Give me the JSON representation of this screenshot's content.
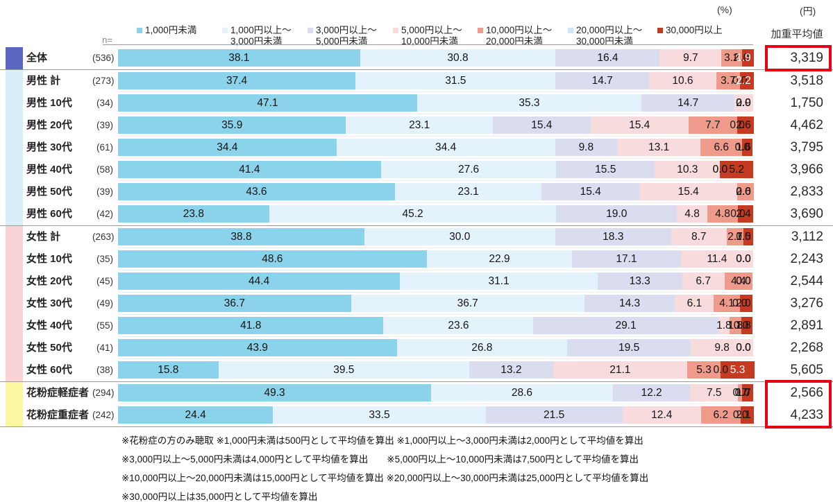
{
  "header": {
    "percent_unit": "(%)",
    "yen_unit": "(円)",
    "avg_col": "加重平均値",
    "n_label": "n="
  },
  "colors": {
    "highlight_box": "#e60012",
    "segment_colors": [
      "#8BD2EB",
      "#E4F3FB",
      "#D9DDEF",
      "#F8DBDD",
      "#EE9B8B",
      "#C9E8F6",
      "#C43B22"
    ],
    "group_stripes": [
      "#5A66C1",
      "#D8EFFA",
      "#F8D2D4",
      "#FAF7A0"
    ]
  },
  "legend": [
    {
      "lines": [
        "1,000円未満"
      ]
    },
    {
      "lines": [
        "1,000円以上～",
        "3,000円未満"
      ]
    },
    {
      "lines": [
        "3,000円以上～",
        "5,000円未満"
      ]
    },
    {
      "lines": [
        "5,000円以上～",
        "10,000円未満"
      ]
    },
    {
      "lines": [
        "10,000円以上～",
        "20,000円未満"
      ]
    },
    {
      "lines": [
        "20,000円以上～",
        "30,000円未満"
      ]
    },
    {
      "lines": [
        "30,000円以上"
      ]
    }
  ],
  "chart_data": {
    "type": "bar",
    "subtype": "100%-stacked-horizontal",
    "value_unit": "%",
    "avg_unit": "円",
    "segment_labels": [
      "1,000円未満",
      "1,000円以上～3,000円未満",
      "3,000円以上～5,000円未満",
      "5,000円以上～10,000円未満",
      "10,000円以上～20,000円未満",
      "20,000円以上～30,000円未満",
      "30,000円以上"
    ],
    "xlim": [
      0,
      100
    ],
    "groups": [
      {
        "stripe_index": 0,
        "rows": [
          {
            "label": "全体",
            "n": "(536)",
            "values": [
              38.1,
              30.8,
              16.4,
              9.7,
              3.2,
              0.0,
              1.9
            ],
            "avg": "3,319",
            "white_last": true,
            "boxed": true
          }
        ]
      },
      {
        "stripe_index": 1,
        "rows": [
          {
            "label": "男性 計",
            "n": "(273)",
            "values": [
              37.4,
              31.5,
              14.7,
              10.6,
              3.7,
              0.0,
              2.2
            ],
            "avg": "3,518",
            "white_last": true
          },
          {
            "label": "男性 10代",
            "n": "(34)",
            "values": [
              47.1,
              35.3,
              14.7,
              2.9,
              0.0,
              0.0,
              0.0
            ],
            "avg": "1,750"
          },
          {
            "label": "男性 20代",
            "n": "(39)",
            "values": [
              35.9,
              23.1,
              15.4,
              15.4,
              7.7,
              0.0,
              2.6
            ],
            "avg": "4,462"
          },
          {
            "label": "男性 30代",
            "n": "(61)",
            "values": [
              34.4,
              34.4,
              9.8,
              13.1,
              6.6,
              0.0,
              1.6
            ],
            "avg": "3,795"
          },
          {
            "label": "男性 40代",
            "n": "(58)",
            "values": [
              41.4,
              27.6,
              15.5,
              10.3,
              0.0,
              0.0,
              5.2
            ],
            "avg": "3,966"
          },
          {
            "label": "男性 50代",
            "n": "(39)",
            "values": [
              43.6,
              23.1,
              15.4,
              15.4,
              2.6,
              0.0,
              0.0
            ],
            "avg": "2,833"
          },
          {
            "label": "男性 60代",
            "n": "(42)",
            "values": [
              23.8,
              45.2,
              19.0,
              4.8,
              4.8,
              0.0,
              2.4
            ],
            "avg": "3,690"
          }
        ]
      },
      {
        "stripe_index": 2,
        "rows": [
          {
            "label": "女性 計",
            "n": "(263)",
            "values": [
              38.8,
              30.0,
              18.3,
              8.7,
              2.7,
              0.0,
              1.5
            ],
            "avg": "3,112"
          },
          {
            "label": "女性 10代",
            "n": "(35)",
            "values": [
              48.6,
              22.9,
              17.1,
              11.4,
              0.0,
              0.0,
              0.0
            ],
            "avg": "2,243"
          },
          {
            "label": "女性 20代",
            "n": "(45)",
            "values": [
              44.4,
              31.1,
              13.3,
              6.7,
              4.4,
              0.0,
              0.0
            ],
            "avg": "2,544"
          },
          {
            "label": "女性 30代",
            "n": "(49)",
            "values": [
              36.7,
              36.7,
              14.3,
              6.1,
              4.1,
              0.0,
              2.0
            ],
            "avg": "3,276"
          },
          {
            "label": "女性 40代",
            "n": "(55)",
            "values": [
              41.8,
              23.6,
              29.1,
              1.8,
              1.8,
              0.0,
              1.8
            ],
            "avg": "2,891"
          },
          {
            "label": "女性 50代",
            "n": "(41)",
            "values": [
              43.9,
              26.8,
              19.5,
              9.8,
              0.0,
              0.0,
              0.0
            ],
            "avg": "2,268"
          },
          {
            "label": "女性 60代",
            "n": "(38)",
            "values": [
              15.8,
              39.5,
              13.2,
              21.1,
              5.3,
              0.0,
              5.3
            ],
            "avg": "5,605",
            "white_last": true
          }
        ]
      },
      {
        "stripe_index": 3,
        "rows": [
          {
            "label": "花粉症軽症者",
            "n": "(294)",
            "values": [
              49.3,
              28.6,
              12.2,
              7.5,
              0.7,
              0.0,
              1.7
            ],
            "avg": "2,566",
            "boxed": true
          },
          {
            "label": "花粉症重症者",
            "n": "(242)",
            "values": [
              24.4,
              33.5,
              21.5,
              12.4,
              6.2,
              0.0,
              2.1
            ],
            "avg": "4,233",
            "boxed": true
          }
        ]
      }
    ]
  },
  "footnotes": [
    "※花粉症の方のみ聴取 ※1,000円未満は500円として平均値を算出  ※1,000円以上～3,000円未満は2,000円として平均値を算出",
    "※3,000円以上～5,000円未満は4,000円として平均値を算出　　※5,000円以上～10,000円未満は7,500円として平均値を算出",
    "※10,000円以上～20,000円未満は15,000円として平均値を算出 ※20,000円以上～30,000円未満は25,000円として平均値を算出",
    "※30,000円以上は35,000円として平均値を算出"
  ]
}
